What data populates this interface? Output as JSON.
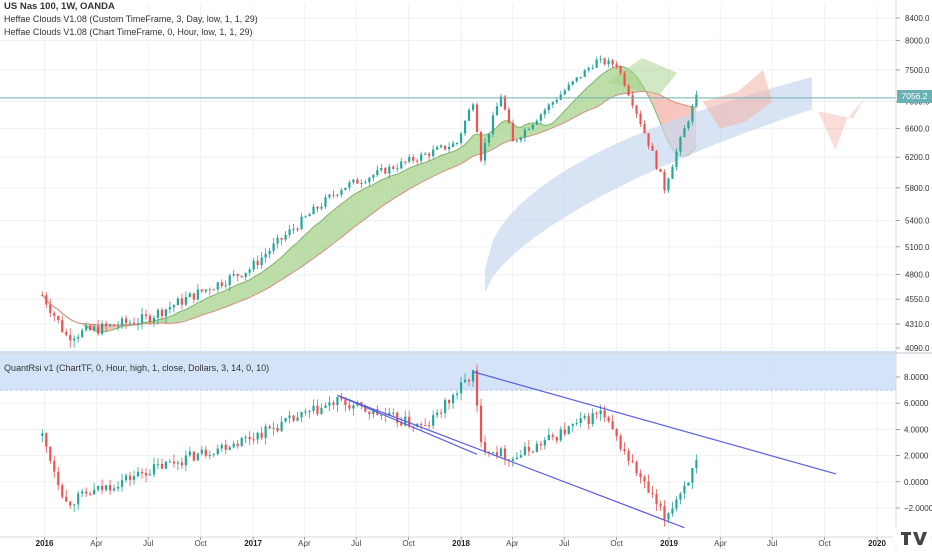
{
  "header": {
    "title": "US Nas 100, 1W, OANDA",
    "indicator1": "Heffae Clouds V1.08 (Custom TimeFrame, 3, Day, low, 1, 1, 29)",
    "indicator2": "Heffae Clouds V1.08 (Chart TimeFrame, 0, Hour, low, 1, 1, 29)"
  },
  "lower_pane": {
    "title": "QuantRsi v1 (ChartTF, 0, Hour, high, 1, close, Dollars, 3, 14, 0, 10)"
  },
  "current_price_label": "7056.2",
  "colors": {
    "up": "#26a69a",
    "down": "#ef5350",
    "cloud_green": "#a5d28a",
    "cloud_red": "#f4b2a8",
    "cloud_blue": "#c7d9ef",
    "rsi_band": "#cfe0f7",
    "trend_line": "#5b5fe0",
    "price_line": "#6bb0b4"
  },
  "chart_data": [
    {
      "type": "candlestick",
      "title": "US Nas 100, 1W, OANDA",
      "y_axis": {
        "scale": "log",
        "ticks": [
          "8400.0",
          "8000.0",
          "7500.0",
          "7000.0",
          "6600.0",
          "6200.0",
          "5800.0",
          "5400.0",
          "5100.0",
          "4800.0",
          "4550.0",
          "4310.0",
          "4090.0"
        ]
      },
      "x_axis": {
        "ticks": [
          "2016",
          "Apr",
          "Jul",
          "Oct",
          "2017",
          "Apr",
          "Jul",
          "Oct",
          "2018",
          "Apr",
          "Jul",
          "Oct",
          "2019",
          "Apr",
          "Jul",
          "Oct",
          "2020"
        ]
      },
      "key_levels": [
        {
          "date": "2015-12-28",
          "close": 4590
        },
        {
          "date": "2016-02-08",
          "close": 4200
        },
        {
          "date": "2016-06-27",
          "close": 4360
        },
        {
          "date": "2016-12-26",
          "close": 4860
        },
        {
          "date": "2017-06-05",
          "close": 5800
        },
        {
          "date": "2017-12-25",
          "close": 6400
        },
        {
          "date": "2018-01-22",
          "close": 7010
        },
        {
          "date": "2018-02-05",
          "close": 6200
        },
        {
          "date": "2018-03-12",
          "close": 7100
        },
        {
          "date": "2018-04-02",
          "close": 6400
        },
        {
          "date": "2018-08-27",
          "close": 7650
        },
        {
          "date": "2018-10-01",
          "close": 7590
        },
        {
          "date": "2018-12-24",
          "close": 5800
        },
        {
          "date": "2019-02-18",
          "close": 7056.2
        }
      ],
      "current_price": 7056.2,
      "series": [
        {
          "name": "Heffae Clouds V1.08 (Custom TimeFrame, 3, Day, low, 1, 1, 29)"
        },
        {
          "name": "Heffae Clouds V1.08 (Chart TimeFrame, 0, Hour, low, 1, 1, 29)"
        }
      ]
    },
    {
      "type": "candlestick",
      "title": "QuantRsi v1 (ChartTF, 0, Hour, high, 1, close, Dollars, 3, 14, 0, 10)",
      "y_axis": {
        "ticks": [
          "8.0000",
          "6.0000",
          "4.0000",
          "2.0000",
          "0.0000",
          "−2.0000"
        ],
        "range": [
          -3.5,
          10
        ]
      },
      "x_axis": {
        "ticks": [
          "2016",
          "Apr",
          "Jul",
          "Oct",
          "2017",
          "Apr",
          "Jul",
          "Oct",
          "2018",
          "Apr",
          "Jul",
          "Oct",
          "2019",
          "Apr",
          "Jul",
          "Oct",
          "2020"
        ]
      },
      "key_levels": [
        {
          "date": "2015-12-28",
          "close": 3.5
        },
        {
          "date": "2016-02-08",
          "close": -1.6
        },
        {
          "date": "2016-06-27",
          "close": 0.8
        },
        {
          "date": "2016-12-26",
          "close": 3.4
        },
        {
          "date": "2017-05-29",
          "close": 6.1
        },
        {
          "date": "2017-10-30",
          "close": 4.1
        },
        {
          "date": "2018-01-22",
          "close": 8.3
        },
        {
          "date": "2018-02-05",
          "close": 2.8
        },
        {
          "date": "2018-04-02",
          "close": 1.8
        },
        {
          "date": "2018-09-03",
          "close": 5.3
        },
        {
          "date": "2018-12-24",
          "close": -2.8
        },
        {
          "date": "2019-02-18",
          "close": 1.3
        }
      ],
      "band": [
        7,
        10
      ],
      "trend_lines": [
        {
          "name": "upper",
          "from": {
            "date": "2017-05-29",
            "value": 6.6
          },
          "to": {
            "date": "2018-01-29",
            "value": 2.1
          }
        },
        {
          "name": "lower",
          "from": {
            "date": "2017-05-29",
            "value": 6.6
          },
          "to": {
            "date": "2019-01-28",
            "value": -3.5
          }
        },
        {
          "name": "channel-top",
          "from": {
            "date": "2018-01-22",
            "value": 8.4
          },
          "to": {
            "date": "2019-10-21",
            "value": 0.6
          }
        }
      ]
    }
  ]
}
